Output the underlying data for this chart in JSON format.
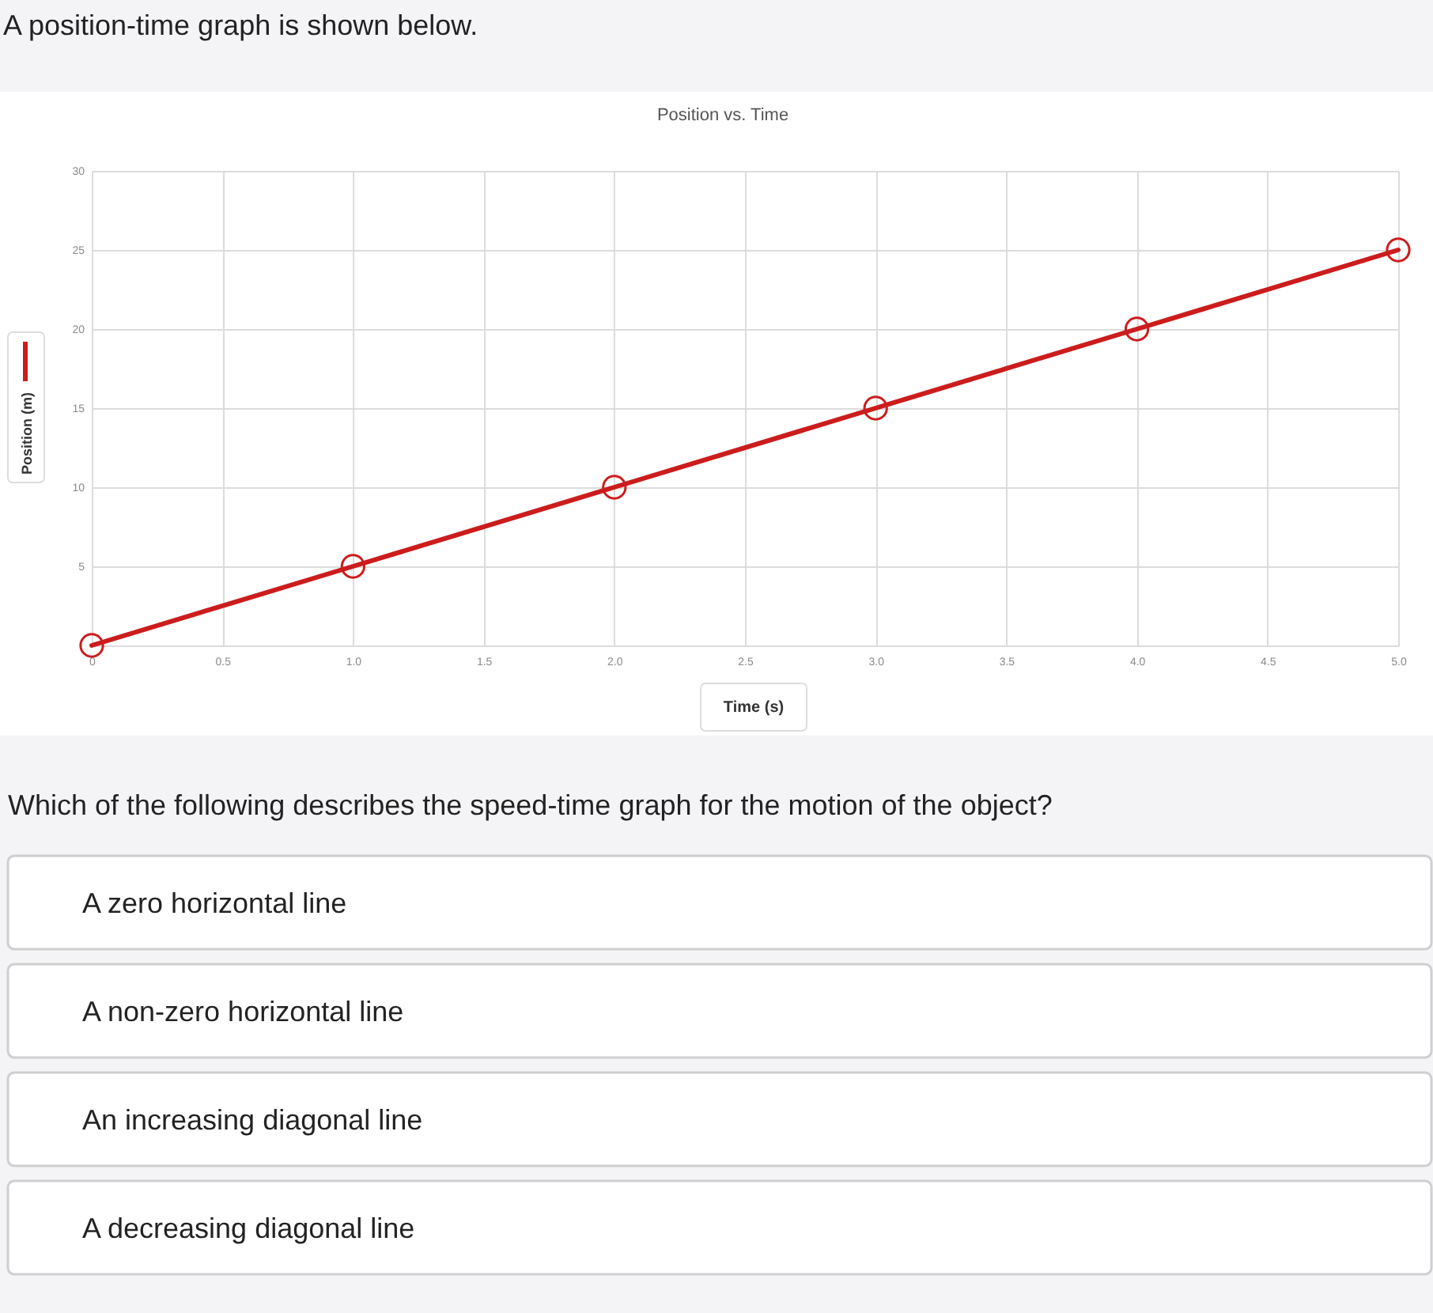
{
  "chart_data": [
    {
      "type": "other",
      "title": "A position-time graph is shown below."
    },
    {
      "type": "line",
      "title": "Position vs. Time",
      "xlabel": "Time (s)",
      "x": [
        0,
        1,
        2,
        3,
        4,
        5
      ],
      "series": [
        {
          "name": "Position (m)",
          "color": "#cc1c1c",
          "values": [
            0,
            5,
            10,
            15,
            20,
            25
          ]
        }
      ],
      "xlim": [
        0,
        5
      ],
      "ylim": [
        0,
        30
      ],
      "xticks": [
        0,
        0.5,
        {
          "value": 1,
          "label": "1.0"
        },
        1.5,
        {
          "value": 2,
          "label": "2.0"
        },
        2.5,
        {
          "value": 3,
          "label": "3.0"
        },
        3.5,
        {
          "value": 4,
          "label": "4.0"
        },
        4.5,
        {
          "value": 5,
          "label": "5.0"
        }
      ],
      "yticks": [
        {
          "value": 0,
          "label": null
        },
        5,
        10,
        15,
        20,
        25,
        30
      ],
      "grid": true,
      "legend": "left",
      "marker": "circle",
      "line_style": "solid"
    },
    {
      "type": "other",
      "title": "Which of the following describes the speed-time graph for the motion of the object?",
      "annotations": [
        "A zero horizontal line",
        "A non-zero horizontal line",
        "An increasing diagonal line",
        "A decreasing diagonal line"
      ]
    }
  ]
}
